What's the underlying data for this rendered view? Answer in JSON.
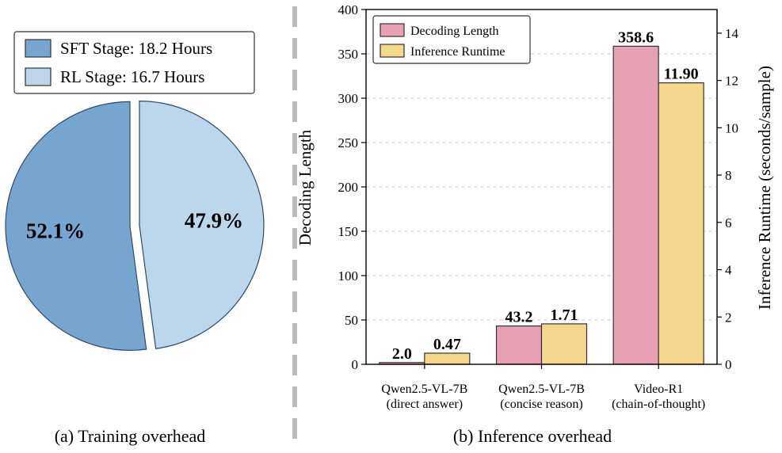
{
  "colors": {
    "sft": "#76a5cf",
    "rl": "#bcd6ec",
    "decoding": "#e8a0b5",
    "runtime": "#f5d78e",
    "grid": "#c8c8c8",
    "divider": "#bbbbbb"
  },
  "chart_data": [
    {
      "type": "pie",
      "slices": [
        {
          "label": "SFT Stage: 18.2 Hours",
          "value": 52.1,
          "pct_label": "52.1%"
        },
        {
          "label": "RL Stage: 16.7 Hours",
          "value": 47.9,
          "pct_label": "47.9%"
        }
      ],
      "legend": "top",
      "caption": "(a) Training overhead"
    },
    {
      "type": "bar",
      "categories": [
        [
          "Qwen2.5-VL-7B",
          "(direct answer)"
        ],
        [
          "Qwen2.5-VL-7B",
          "(concise reason)"
        ],
        [
          "Video-R1",
          "(chain-of-thought)"
        ]
      ],
      "series": [
        {
          "name": "Decoding Length",
          "axis": "left",
          "values": [
            2.0,
            43.2,
            358.6
          ],
          "labels": [
            "2.0",
            "43.2",
            "358.6"
          ]
        },
        {
          "name": "Inference Runtime",
          "axis": "right",
          "values": [
            0.47,
            1.71,
            11.9
          ],
          "labels": [
            "0.47",
            "1.71",
            "11.90"
          ]
        }
      ],
      "ylabel": "Decoding Length",
      "ylabel_right": "Inference Runtime (seconds/sample)",
      "ylim": [
        0,
        400
      ],
      "ylim_right": [
        0,
        15
      ],
      "yticks": [
        0,
        50,
        100,
        150,
        200,
        250,
        300,
        350,
        400
      ],
      "yticks_right": [
        0,
        2,
        4,
        6,
        8,
        10,
        12,
        14
      ],
      "grid": true,
      "legend": "top-left",
      "caption": "(b) Inference overhead"
    }
  ]
}
